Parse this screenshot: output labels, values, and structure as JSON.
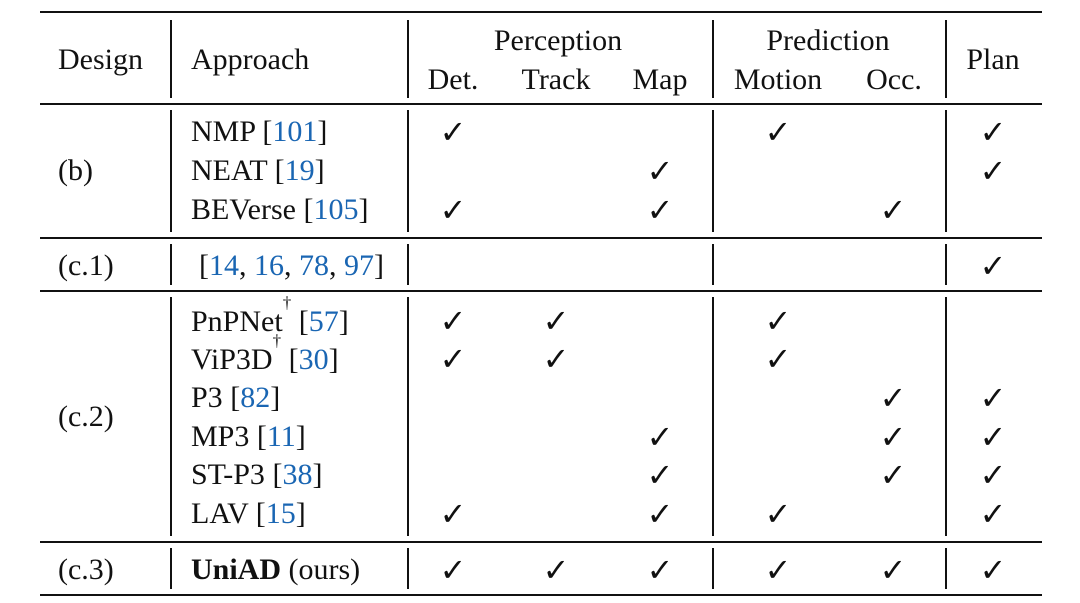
{
  "headers": {
    "design": "Design",
    "approach": "Approach",
    "perception": "Perception",
    "prediction": "Prediction",
    "plan": "Plan",
    "det": "Det.",
    "track": "Track",
    "map": "Map",
    "motion": "Motion",
    "occ": "Occ."
  },
  "check_mark": "✓",
  "rows": [
    {
      "name": "NMP",
      "sup": "",
      "refs": [
        "101"
      ],
      "design": "(b)",
      "det": true,
      "track": false,
      "map": false,
      "motion": true,
      "occ": false,
      "plan": true
    },
    {
      "name": "NEAT",
      "sup": "",
      "refs": [
        "19"
      ],
      "design": "",
      "det": false,
      "track": false,
      "map": true,
      "motion": false,
      "occ": false,
      "plan": true
    },
    {
      "name": "BEVerse",
      "sup": "",
      "refs": [
        "105"
      ],
      "design": "",
      "det": true,
      "track": false,
      "map": true,
      "motion": false,
      "occ": true,
      "plan": false
    },
    {
      "name": "",
      "sup": "",
      "refs": [
        "14",
        "16",
        "78",
        "97"
      ],
      "design": "(c.1)",
      "det": false,
      "track": false,
      "map": false,
      "motion": false,
      "occ": false,
      "plan": true
    },
    {
      "name": "PnPNet",
      "sup": "†",
      "refs": [
        "57"
      ],
      "design": "",
      "det": true,
      "track": true,
      "map": false,
      "motion": true,
      "occ": false,
      "plan": false
    },
    {
      "name": "ViP3D",
      "sup": "†",
      "refs": [
        "30"
      ],
      "design": "",
      "det": true,
      "track": true,
      "map": false,
      "motion": true,
      "occ": false,
      "plan": false
    },
    {
      "name": "P3",
      "sup": "",
      "refs": [
        "82"
      ],
      "design": "(c.2)",
      "det": false,
      "track": false,
      "map": false,
      "motion": false,
      "occ": true,
      "plan": true
    },
    {
      "name": "MP3",
      "sup": "",
      "refs": [
        "11"
      ],
      "design": "",
      "det": false,
      "track": false,
      "map": true,
      "motion": false,
      "occ": true,
      "plan": true
    },
    {
      "name": "ST-P3",
      "sup": "",
      "refs": [
        "38"
      ],
      "design": "",
      "det": false,
      "track": false,
      "map": true,
      "motion": false,
      "occ": true,
      "plan": true
    },
    {
      "name": "LAV",
      "sup": "",
      "refs": [
        "15"
      ],
      "design": "",
      "det": true,
      "track": false,
      "map": true,
      "motion": true,
      "occ": false,
      "plan": true
    },
    {
      "name": "UniAD",
      "suffix": " (ours)",
      "bold": true,
      "sup": "",
      "refs": [],
      "design": "(c.3)",
      "det": true,
      "track": true,
      "map": true,
      "motion": true,
      "occ": true,
      "plan": true
    }
  ]
}
